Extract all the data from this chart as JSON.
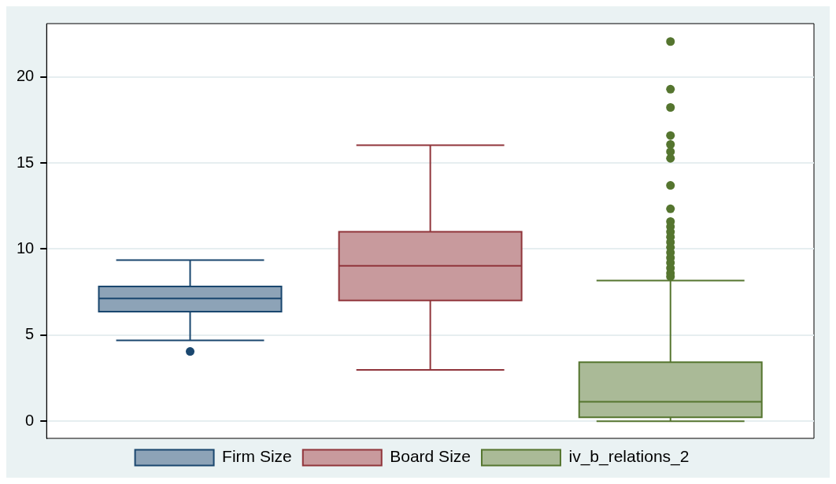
{
  "chart_data": {
    "type": "box",
    "categories": [
      null
    ],
    "series": [
      {
        "name": "Firm Size",
        "color": "#1a476f",
        "boxes": [
          {
            "low": 4.69,
            "q1": 6.36,
            "median": 7.13,
            "q3": 7.83,
            "high": 9.36,
            "outliers": [
              4.05
            ]
          }
        ]
      },
      {
        "name": "Board Size",
        "color": "#90353b",
        "boxes": [
          {
            "low": 2.98,
            "q1": 7.02,
            "median": 9.03,
            "q3": 11.0,
            "high": 16.03
          }
        ]
      },
      {
        "name": "iv_b_relations_2",
        "color": "#55752f",
        "boxes": [
          {
            "low": 0.0,
            "q1": 0.22,
            "median": 1.13,
            "q3": 3.43,
            "high": 8.17,
            "outliers": [
              22.06,
              19.29,
              18.23,
              16.6,
              16.08,
              15.66,
              15.27,
              13.7,
              12.34,
              11.6,
              11.3,
              11.0,
              10.7,
              10.4,
              10.1,
              9.8,
              9.5,
              9.2,
              8.9,
              8.6,
              8.4
            ]
          }
        ]
      }
    ],
    "ylim": [
      -1.0,
      23.1
    ],
    "yticks": [
      0,
      5,
      10,
      15,
      20
    ],
    "grid": "y",
    "legend": "bottom"
  }
}
